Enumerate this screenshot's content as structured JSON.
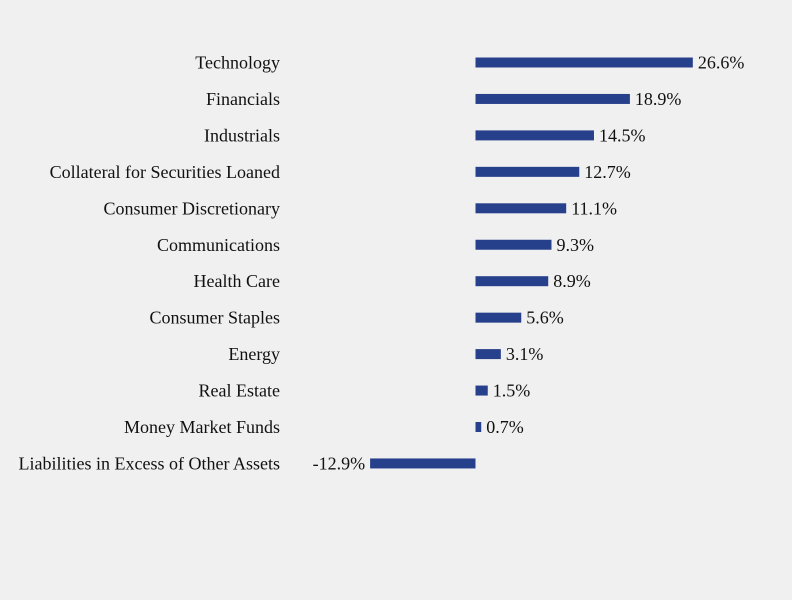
{
  "chart_data": {
    "type": "bar",
    "orientation": "horizontal",
    "title": "",
    "xlabel": "",
    "ylabel": "",
    "categories": [
      "Technology",
      "Financials",
      "Industrials",
      "Collateral for Securities Loaned",
      "Consumer Discretionary",
      "Communications",
      "Health Care",
      "Consumer Staples",
      "Energy",
      "Real Estate",
      "Money Market Funds",
      "Liabilities in Excess of Other Assets"
    ],
    "values": [
      26.6,
      18.9,
      14.5,
      12.7,
      11.1,
      9.3,
      8.9,
      5.6,
      3.1,
      1.5,
      0.7,
      -12.9
    ],
    "value_labels": [
      "26.6%",
      "18.9%",
      "14.5%",
      "12.7%",
      "11.1%",
      "9.3%",
      "8.9%",
      "5.6%",
      "3.1%",
      "1.5%",
      "0.7%",
      "-12.9%"
    ],
    "grid": false,
    "legend": "none"
  },
  "colors": {
    "bar": "#27408b",
    "background": "#f0f0f0",
    "text": "#111111"
  }
}
